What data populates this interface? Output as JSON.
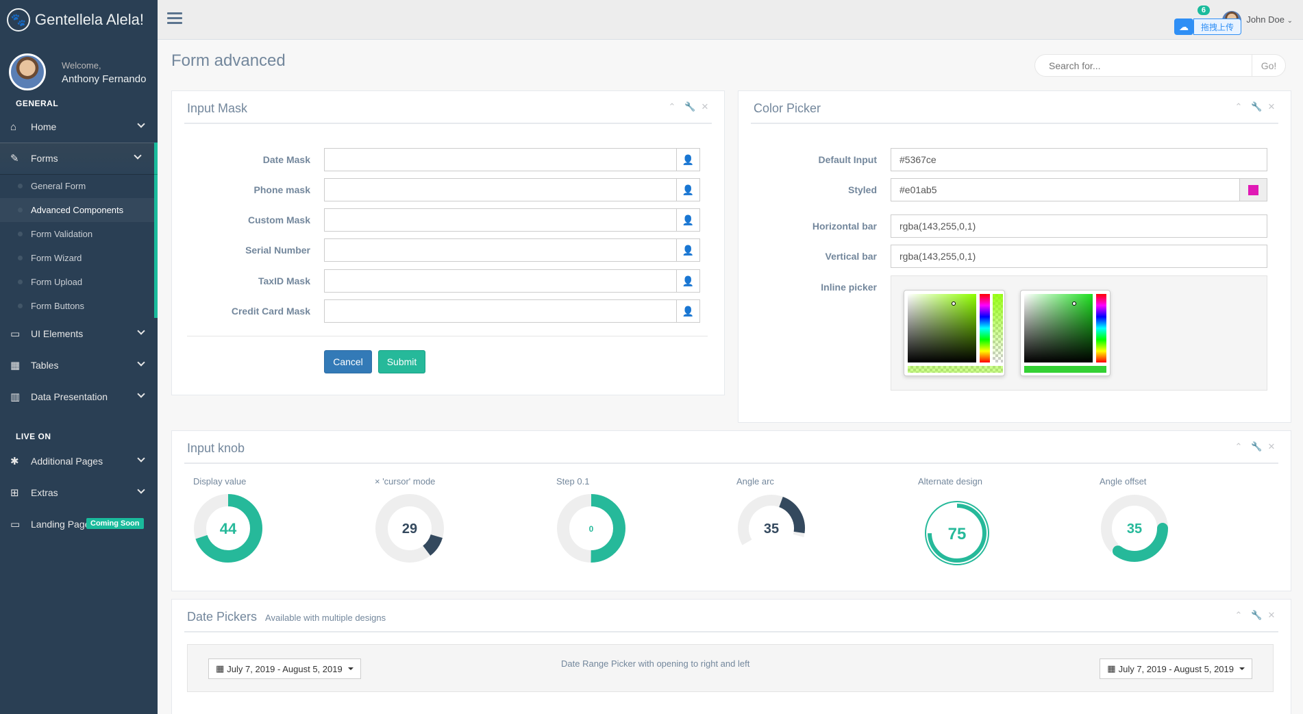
{
  "brand": {
    "name": "Gentellela Alela!",
    "logo_icon": "paw-icon"
  },
  "profile": {
    "welcome": "Welcome,",
    "name": "Anthony Fernando"
  },
  "sidebar": {
    "section_general": "GENERAL",
    "section_live": "LIVE ON",
    "items": [
      {
        "label": "Home",
        "icon": "home-icon"
      },
      {
        "label": "Forms",
        "icon": "edit-icon"
      },
      {
        "label": "UI Elements",
        "icon": "desktop-icon"
      },
      {
        "label": "Tables",
        "icon": "table-icon"
      },
      {
        "label": "Data Presentation",
        "icon": "bar-chart-icon"
      },
      {
        "label": "Additional Pages",
        "icon": "bug-icon"
      },
      {
        "label": "Extras",
        "icon": "windows-icon"
      },
      {
        "label": "Landing Page",
        "icon": "laptop-icon",
        "badge": "Coming Soon"
      }
    ],
    "forms_sub": [
      "General Form",
      "Advanced Components",
      "Form Validation",
      "Form Wizard",
      "Form Upload",
      "Form Buttons"
    ]
  },
  "topbar": {
    "upload_label": "拖拽上传",
    "notifications": "6",
    "user": "John Doe"
  },
  "page": {
    "title": "Form advanced"
  },
  "search": {
    "placeholder": "Search for...",
    "button": "Go!"
  },
  "input_mask": {
    "title": "Input Mask",
    "fields": [
      "Date Mask",
      "Phone mask",
      "Custom Mask",
      "Serial Number",
      "TaxID Mask",
      "Credit Card Mask"
    ],
    "cancel": "Cancel",
    "submit": "Submit"
  },
  "color_picker": {
    "title": "Color Picker",
    "default_label": "Default Input",
    "default_value": "#5367ce",
    "styled_label": "Styled",
    "styled_value": "#e01ab5",
    "hbar_label": "Horizontal bar",
    "hbar_value": "rgba(143,255,0,1)",
    "vbar_label": "Vertical bar",
    "vbar_value": "rgba(143,255,0,1)",
    "inline_label": "Inline picker",
    "swatch_color": "#e01ab5"
  },
  "knobs": {
    "title": "Input knob",
    "items": [
      {
        "label": "Display value",
        "value": "44"
      },
      {
        "label": "× 'cursor' mode",
        "value": "29"
      },
      {
        "label": "Step 0.1",
        "value": "0"
      },
      {
        "label": "Angle arc",
        "value": "35"
      },
      {
        "label": "Alternate design",
        "value": "75"
      },
      {
        "label": "Angle offset",
        "value": "35"
      }
    ]
  },
  "date_pickers": {
    "title": "Date Pickers",
    "subtitle": "Available with multiple designs",
    "range_left": "July 7, 2019 - August 5, 2019",
    "center_text": "Date Range Picker with opening to right and left",
    "range_right": "July 7, 2019 - August 5, 2019"
  },
  "colors": {
    "accent": "#1ABB9C",
    "sidebar": "#2A3F54",
    "dark_knob": "#34495E"
  }
}
